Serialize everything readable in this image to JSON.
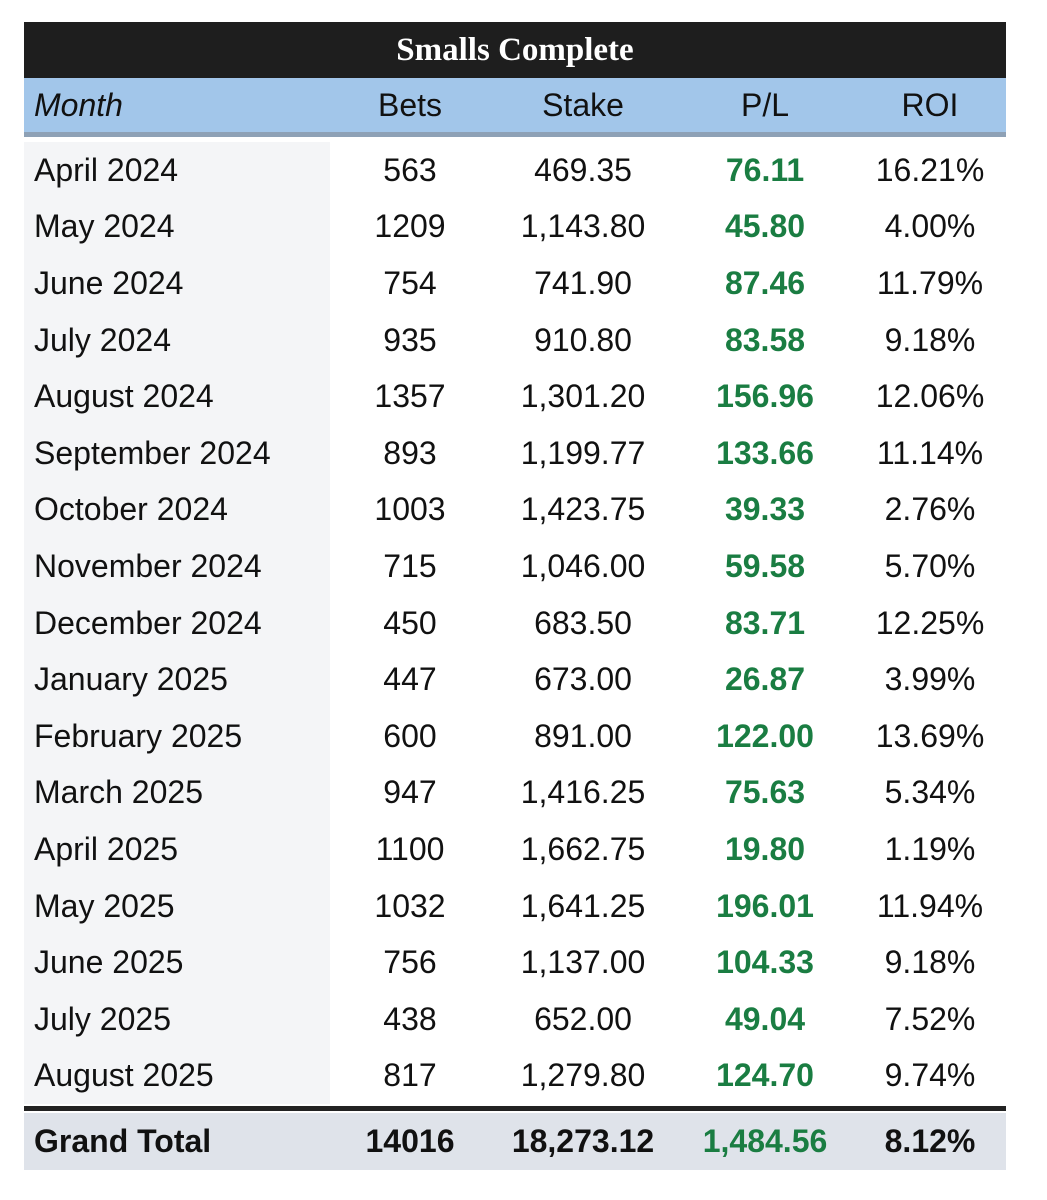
{
  "title": "Smalls Complete",
  "headers": {
    "month": "Month",
    "bets": "Bets",
    "stake": "Stake",
    "pl": "P/L",
    "roi": "ROI"
  },
  "rows": [
    {
      "month": "April 2024",
      "bets": "563",
      "stake": "469.35",
      "pl": "76.11",
      "roi": "16.21%"
    },
    {
      "month": "May 2024",
      "bets": "1209",
      "stake": "1,143.80",
      "pl": "45.80",
      "roi": "4.00%"
    },
    {
      "month": "June 2024",
      "bets": "754",
      "stake": "741.90",
      "pl": "87.46",
      "roi": "11.79%"
    },
    {
      "month": "July 2024",
      "bets": "935",
      "stake": "910.80",
      "pl": "83.58",
      "roi": "9.18%"
    },
    {
      "month": "August 2024",
      "bets": "1357",
      "stake": "1,301.20",
      "pl": "156.96",
      "roi": "12.06%"
    },
    {
      "month": "September 2024",
      "bets": "893",
      "stake": "1,199.77",
      "pl": "133.66",
      "roi": "11.14%"
    },
    {
      "month": "October 2024",
      "bets": "1003",
      "stake": "1,423.75",
      "pl": "39.33",
      "roi": "2.76%"
    },
    {
      "month": "November 2024",
      "bets": "715",
      "stake": "1,046.00",
      "pl": "59.58",
      "roi": "5.70%"
    },
    {
      "month": "December 2024",
      "bets": "450",
      "stake": "683.50",
      "pl": "83.71",
      "roi": "12.25%"
    },
    {
      "month": "January 2025",
      "bets": "447",
      "stake": "673.00",
      "pl": "26.87",
      "roi": "3.99%"
    },
    {
      "month": "February 2025",
      "bets": "600",
      "stake": "891.00",
      "pl": "122.00",
      "roi": "13.69%"
    },
    {
      "month": "March 2025",
      "bets": "947",
      "stake": "1,416.25",
      "pl": "75.63",
      "roi": "5.34%"
    },
    {
      "month": "April 2025",
      "bets": "1100",
      "stake": "1,662.75",
      "pl": "19.80",
      "roi": "1.19%"
    },
    {
      "month": "May 2025",
      "bets": "1032",
      "stake": "1,641.25",
      "pl": "196.01",
      "roi": "11.94%"
    },
    {
      "month": "June 2025",
      "bets": "756",
      "stake": "1,137.00",
      "pl": "104.33",
      "roi": "9.18%"
    },
    {
      "month": "July 2025",
      "bets": "438",
      "stake": "652.00",
      "pl": "49.04",
      "roi": "7.52%"
    },
    {
      "month": "August 2025",
      "bets": "817",
      "stake": "1,279.80",
      "pl": "124.70",
      "roi": "9.74%"
    }
  ],
  "total": {
    "label": "Grand Total",
    "bets": "14016",
    "stake": "18,273.12",
    "pl": "1,484.56",
    "roi": "8.12%"
  },
  "colors": {
    "title_bg": "#1e1e1e",
    "header_bg": "#a2c6ea",
    "profit_green": "#1a7d42",
    "total_bg": "#dfe3ea"
  }
}
